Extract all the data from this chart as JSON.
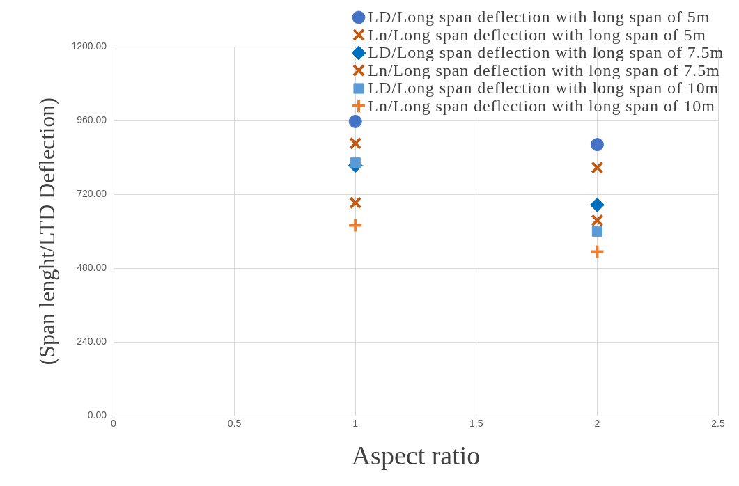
{
  "chart_data": {
    "type": "scatter",
    "xlabel": "Aspect ratio",
    "ylabel": "(Span lenght/LTD Deflection)",
    "xlim": [
      0,
      2.5
    ],
    "xticks": [
      0,
      0.5,
      1,
      1.5,
      2,
      2.5
    ],
    "ylim": [
      0,
      1200
    ],
    "yticks": [
      {
        "value": 0,
        "label": "0.00"
      },
      {
        "value": 240,
        "label": "240.00"
      },
      {
        "value": 480,
        "label": "480.00"
      },
      {
        "value": 720,
        "label": "720.00"
      },
      {
        "value": 960,
        "label": "960.00"
      },
      {
        "value": 1200,
        "label": "1200.00"
      }
    ],
    "grid": true,
    "legend": "top right",
    "x": [
      1,
      2
    ],
    "series": [
      {
        "name": "LD/Long span deflection with long span of 5m",
        "color": "#4472c4",
        "marker": "circle",
        "values": [
          957,
          882
        ]
      },
      {
        "name": "Ln/Long span deflection with long span of 5m",
        "color": "#c55a11",
        "marker": "cross",
        "values": [
          886,
          807
        ]
      },
      {
        "name": "LD/Long span deflection with long span of 7.5m",
        "color": "#0070c0",
        "marker": "diamond",
        "values": [
          814,
          686
        ]
      },
      {
        "name": "Ln/Long span deflection with long span of 7.5m",
        "color": "#c55a11",
        "marker": "cross",
        "values": [
          693,
          636
        ]
      },
      {
        "name": "LD/Long span deflection with long span of 10m",
        "color": "#5b9bd5",
        "marker": "square",
        "values": [
          823,
          600
        ]
      },
      {
        "name": "Ln/Long span deflection with long span of 10m",
        "color": "#ed7d31",
        "marker": "plus",
        "values": [
          620,
          534
        ]
      }
    ]
  }
}
